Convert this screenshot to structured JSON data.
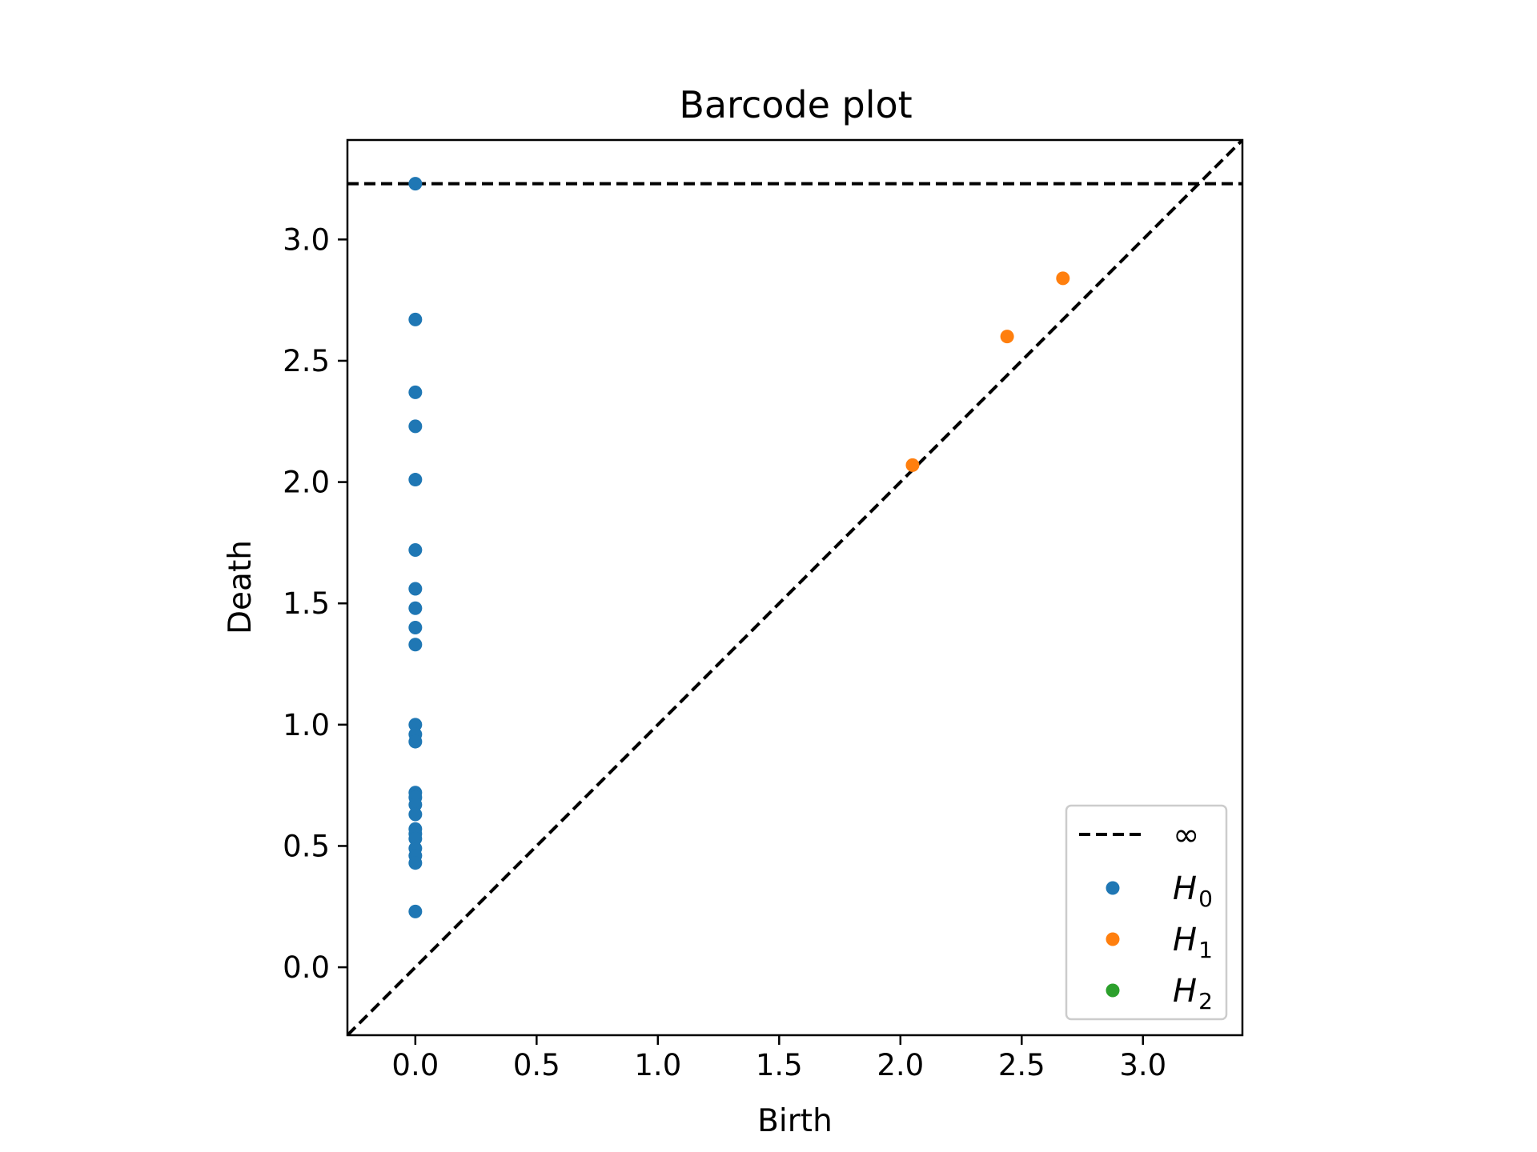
{
  "chart_data": {
    "type": "scatter",
    "title": "Barcode plot",
    "xlabel": "Birth",
    "ylabel": "Death",
    "xlim": [
      -0.28,
      3.41
    ],
    "ylim": [
      -0.28,
      3.41
    ],
    "xticks": [
      "0.0",
      "0.5",
      "1.0",
      "1.5",
      "2.0",
      "2.5",
      "3.0"
    ],
    "yticks": [
      "0.0",
      "0.5",
      "1.0",
      "1.5",
      "2.0",
      "2.5",
      "3.0"
    ],
    "grid": false,
    "legend_position": "bottom-right",
    "infinity_level": 3.23,
    "diagonal": true,
    "series": [
      {
        "legend_main": "H",
        "legend_sub": "0",
        "color": "#1f77b4",
        "points": [
          [
            0.0,
            3.23
          ],
          [
            0.0,
            2.67
          ],
          [
            0.0,
            2.37
          ],
          [
            0.0,
            2.23
          ],
          [
            0.0,
            2.01
          ],
          [
            0.0,
            1.72
          ],
          [
            0.0,
            1.56
          ],
          [
            0.0,
            1.48
          ],
          [
            0.0,
            1.4
          ],
          [
            0.0,
            1.33
          ],
          [
            0.0,
            1.0
          ],
          [
            0.0,
            0.96
          ],
          [
            0.0,
            0.93
          ],
          [
            0.0,
            0.72
          ],
          [
            0.0,
            0.7
          ],
          [
            0.0,
            0.67
          ],
          [
            0.0,
            0.63
          ],
          [
            0.0,
            0.57
          ],
          [
            0.0,
            0.55
          ],
          [
            0.0,
            0.53
          ],
          [
            0.0,
            0.49
          ],
          [
            0.0,
            0.46
          ],
          [
            0.0,
            0.43
          ],
          [
            0.0,
            0.23
          ]
        ]
      },
      {
        "legend_main": "H",
        "legend_sub": "1",
        "color": "#ff7f0e",
        "points": [
          [
            2.05,
            2.07
          ],
          [
            2.44,
            2.6
          ],
          [
            2.67,
            2.84
          ]
        ]
      },
      {
        "legend_main": "H",
        "legend_sub": "2",
        "color": "#2ca02c",
        "points": []
      }
    ],
    "legend": {
      "infinity_label": "∞"
    }
  }
}
